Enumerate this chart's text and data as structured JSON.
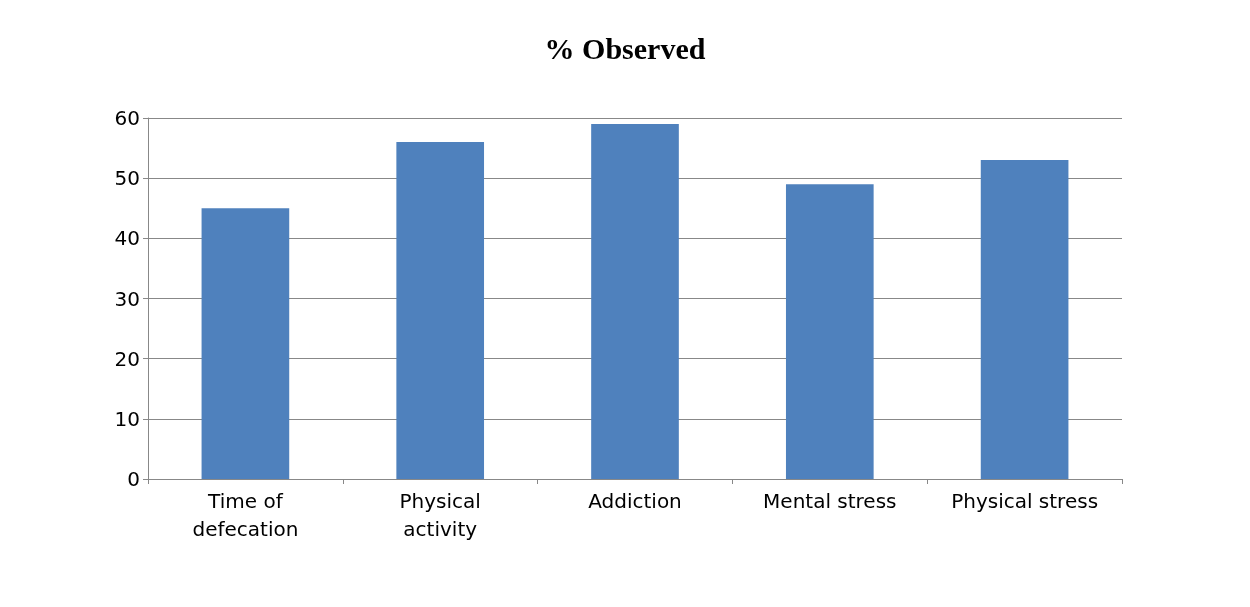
{
  "chart_data": {
    "type": "bar",
    "title": "% Observed",
    "categories": [
      "Time of\ndefecation",
      "Physical\nactivity",
      "Addiction",
      "Mental stress",
      "Physical stress"
    ],
    "values": [
      45,
      56,
      59,
      49,
      53
    ],
    "color": "#4f81bd",
    "ylim": [
      0,
      60
    ],
    "yticks": [
      0,
      10,
      20,
      30,
      40,
      50,
      60
    ],
    "grid": "y"
  }
}
